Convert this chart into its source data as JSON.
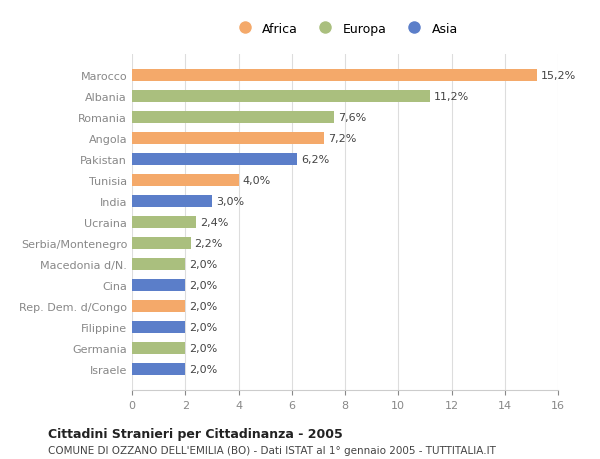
{
  "categories": [
    "Marocco",
    "Albania",
    "Romania",
    "Angola",
    "Pakistan",
    "Tunisia",
    "India",
    "Ucraina",
    "Serbia/Montenegro",
    "Macedonia d/N.",
    "Cina",
    "Rep. Dem. d/Congo",
    "Filippine",
    "Germania",
    "Israele"
  ],
  "values": [
    15.2,
    11.2,
    7.6,
    7.2,
    6.2,
    4.0,
    3.0,
    2.4,
    2.2,
    2.0,
    2.0,
    2.0,
    2.0,
    2.0,
    2.0
  ],
  "labels": [
    "15,2%",
    "11,2%",
    "7,6%",
    "7,2%",
    "6,2%",
    "4,0%",
    "3,0%",
    "2,4%",
    "2,2%",
    "2,0%",
    "2,0%",
    "2,0%",
    "2,0%",
    "2,0%",
    "2,0%"
  ],
  "continents": [
    "Africa",
    "Europa",
    "Europa",
    "Africa",
    "Asia",
    "Africa",
    "Asia",
    "Europa",
    "Europa",
    "Europa",
    "Asia",
    "Africa",
    "Asia",
    "Europa",
    "Asia"
  ],
  "colors": {
    "Africa": "#F4A96A",
    "Europa": "#AABF7E",
    "Asia": "#5B7EC9"
  },
  "legend_labels": [
    "Africa",
    "Europa",
    "Asia"
  ],
  "title": "Cittadini Stranieri per Cittadinanza - 2005",
  "subtitle": "COMUNE DI OZZANO DELL'EMILIA (BO) - Dati ISTAT al 1° gennaio 2005 - TUTTITALIA.IT",
  "xlim": [
    0,
    16
  ],
  "xticks": [
    0,
    2,
    4,
    6,
    8,
    10,
    12,
    14,
    16
  ],
  "background_color": "#ffffff",
  "grid_color": "#dddddd",
  "bar_height": 0.55
}
